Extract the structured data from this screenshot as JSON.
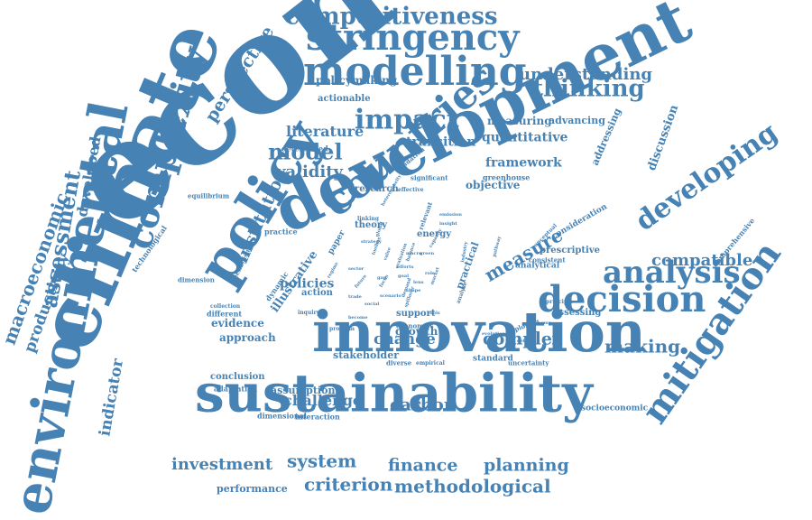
{
  "style": {
    "word_color": "#4682b4",
    "background": "#ffffff"
  },
  "words": [
    "economic",
    "development",
    "innovation",
    "sustainability",
    "climate",
    "policy",
    "environmental",
    "countries",
    "modelling",
    "stringency",
    "complexity",
    "mitigation",
    "decision",
    "analysis",
    "developing",
    "competitiveness",
    "impact",
    "thinking",
    "understanding",
    "macroeconomic",
    "productivity",
    "assessment",
    "developed",
    "perspective",
    "indicator",
    "model",
    "validity",
    "literature",
    "policymaking",
    "actionable",
    "determined",
    "institution",
    "transition",
    "measuring",
    "quantitative",
    "framework",
    "objective",
    "greenhouse",
    "significant",
    "advancing",
    "discussion",
    "addressing",
    "compatible",
    "measure",
    "making",
    "complex",
    "carbon",
    "challenge",
    "assumption",
    "investment",
    "system",
    "finance",
    "planning",
    "criterion",
    "methodological",
    "performance",
    "evidence",
    "approach",
    "conclusion",
    "adaptation",
    "dimensional",
    "interaction",
    "stakeholder",
    "growth",
    "change",
    "support",
    "policies",
    "action",
    "illustrative",
    "dynamic",
    "practice",
    "mechanism",
    "dimension",
    "technological",
    "equilibrium",
    "collection",
    "different",
    "inquiry",
    "problem",
    "economies",
    "energy",
    "theory",
    "linking",
    "research",
    "effective",
    "relevant",
    "practical",
    "analytical",
    "prescriptive",
    "consideration",
    "conceptual",
    "comprehensive",
    "assessing",
    "principle",
    "exploring",
    "standard",
    "uncertainty",
    "socioeconomic",
    "paper",
    "analyse",
    "diverse",
    "empirical",
    "consistent",
    "economy",
    "evaluation",
    "validation",
    "pathway",
    "emission",
    "become",
    "macro",
    "efforts",
    "focus",
    "social",
    "future",
    "scenario",
    "market",
    "sector",
    "toolbox",
    "insight",
    "regime",
    "spillover",
    "lens",
    "shape",
    "goal",
    "gap",
    "capacity",
    "strategy",
    "evolution",
    "detail",
    "industry",
    "heterogeneity",
    "global",
    "balance",
    "demand",
    "role",
    "value",
    "green",
    "trade",
    "tools"
  ]
}
